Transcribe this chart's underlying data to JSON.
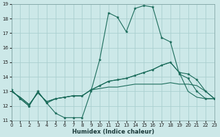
{
  "xlabel": "Humidex (Indice chaleur)",
  "bg_color": "#cce8e8",
  "grid_color": "#aacfcf",
  "line_color": "#1a6b5a",
  "xlim": [
    0,
    23
  ],
  "ylim": [
    11,
    19
  ],
  "xticks": [
    0,
    1,
    2,
    3,
    4,
    5,
    6,
    7,
    8,
    9,
    10,
    11,
    12,
    13,
    14,
    15,
    16,
    17,
    18,
    19,
    20,
    21,
    22,
    23
  ],
  "yticks": [
    11,
    12,
    13,
    14,
    15,
    16,
    17,
    18,
    19
  ],
  "curve1_x": [
    0,
    1,
    2,
    3,
    4,
    5,
    6,
    7,
    8,
    9,
    10,
    11,
    12,
    13,
    14,
    15,
    16,
    17,
    18,
    19,
    20,
    21,
    22,
    23
  ],
  "curve1_y": [
    13.1,
    12.5,
    12.0,
    13.0,
    12.2,
    11.5,
    11.2,
    11.2,
    11.2,
    13.0,
    15.2,
    18.4,
    18.1,
    17.1,
    18.7,
    18.9,
    18.8,
    16.7,
    16.4,
    14.2,
    13.9,
    13.0,
    12.5,
    12.5
  ],
  "curve2_x": [
    0,
    1,
    2,
    3,
    4,
    5,
    6,
    7,
    8,
    9,
    10,
    11,
    12,
    13,
    14,
    15,
    16,
    17,
    18,
    19,
    20,
    21,
    22,
    23
  ],
  "curve2_y": [
    13.0,
    12.6,
    12.1,
    12.9,
    12.3,
    12.5,
    12.6,
    12.7,
    12.7,
    13.1,
    13.4,
    13.7,
    13.8,
    13.9,
    14.1,
    14.3,
    14.5,
    14.8,
    15.0,
    14.3,
    13.0,
    12.6,
    12.5,
    12.5
  ],
  "curve3_x": [
    0,
    1,
    2,
    3,
    4,
    5,
    6,
    7,
    8,
    9,
    10,
    11,
    12,
    13,
    14,
    15,
    16,
    17,
    18,
    19,
    20,
    21,
    22,
    23
  ],
  "curve3_y": [
    13.0,
    12.6,
    12.1,
    12.9,
    12.3,
    12.5,
    12.6,
    12.7,
    12.7,
    13.1,
    13.2,
    13.3,
    13.3,
    13.4,
    13.5,
    13.5,
    13.5,
    13.5,
    13.6,
    13.5,
    13.5,
    13.4,
    13.0,
    12.5
  ],
  "curve4_x": [
    0,
    1,
    2,
    3,
    4,
    5,
    6,
    7,
    8,
    9,
    10,
    11,
    12,
    13,
    14,
    15,
    16,
    17,
    18,
    19,
    20,
    21,
    22,
    23
  ],
  "curve4_y": [
    13.1,
    12.5,
    12.0,
    13.0,
    12.2,
    12.5,
    12.6,
    12.7,
    12.7,
    13.1,
    13.4,
    13.7,
    13.8,
    13.9,
    14.1,
    14.3,
    14.5,
    14.8,
    15.0,
    14.3,
    14.2,
    13.8,
    13.0,
    12.5
  ]
}
